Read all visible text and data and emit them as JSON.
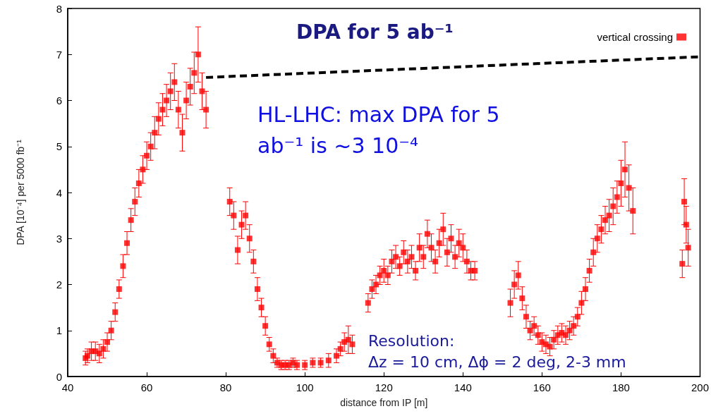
{
  "chart_data": {
    "type": "scatter",
    "title": "DPA for 5 ab⁻¹",
    "xlabel": "distance from IP [m]",
    "ylabel": "DPA [10⁻⁴] per 5000 fb⁻¹",
    "annotations": [
      "HL-LHC: max DPA for 5 ab⁻¹ is ~3 10⁻⁴",
      "Resolution:",
      "Δz = 10 cm, Δϕ = 2 deg, 2-3 mm"
    ],
    "xlim": [
      40,
      200
    ],
    "xticks": [
      40,
      60,
      80,
      100,
      120,
      140,
      160,
      180,
      200
    ],
    "ylim": [
      0,
      8
    ],
    "yticks": [
      0,
      1,
      2,
      3,
      4,
      5,
      6,
      7,
      8
    ],
    "grid": false,
    "legend": "top right",
    "marker": "square",
    "series": [
      {
        "name": "vertical crossing",
        "color": "#ff0000",
        "x": [
          44.5,
          45,
          46,
          47,
          48,
          49,
          50,
          51,
          52,
          53,
          54,
          55,
          56,
          57,
          58,
          59,
          60,
          61,
          62,
          63,
          64,
          65,
          66,
          67,
          68,
          69,
          70,
          71,
          72,
          73,
          74,
          75,
          81,
          82,
          83,
          84,
          85,
          86,
          87,
          88,
          89,
          90,
          91,
          92,
          93,
          94,
          95,
          96,
          97,
          98,
          100,
          102,
          104,
          106,
          108,
          109,
          110,
          111,
          112,
          116,
          117,
          118,
          119,
          120,
          121,
          122,
          123,
          124,
          125,
          126,
          127,
          128,
          129,
          130,
          131,
          132,
          133,
          134,
          135,
          136,
          137,
          138,
          139,
          140,
          141,
          142,
          143,
          152,
          153,
          154,
          155,
          156,
          157,
          158,
          159,
          160,
          161,
          162,
          163,
          164,
          165,
          166,
          167,
          168,
          169,
          170,
          171,
          172,
          173,
          174,
          175,
          176,
          177,
          178,
          179,
          180,
          181,
          182,
          183,
          195.5,
          196,
          196.5,
          197
        ],
        "values": [
          0.4,
          0.45,
          0.55,
          0.55,
          0.5,
          0.6,
          0.75,
          1.0,
          1.4,
          1.9,
          2.4,
          2.9,
          3.4,
          3.8,
          4.2,
          4.5,
          4.8,
          5.0,
          5.3,
          5.6,
          5.8,
          6.0,
          6.2,
          6.4,
          5.8,
          5.3,
          6.0,
          6.3,
          6.6,
          7.0,
          6.2,
          5.8,
          3.8,
          3.5,
          2.75,
          3.3,
          3.5,
          3.0,
          2.5,
          1.9,
          1.5,
          1.1,
          0.7,
          0.45,
          0.3,
          0.25,
          0.25,
          0.25,
          0.3,
          0.25,
          0.25,
          0.3,
          0.3,
          0.35,
          0.45,
          0.6,
          0.75,
          0.8,
          0.7,
          1.6,
          1.9,
          2.0,
          2.2,
          2.3,
          2.2,
          2.5,
          2.6,
          2.4,
          2.7,
          2.5,
          2.6,
          2.3,
          2.8,
          2.6,
          3.1,
          2.8,
          2.5,
          2.9,
          3.2,
          2.7,
          3.0,
          2.6,
          2.9,
          2.8,
          2.5,
          2.3,
          2.3,
          1.6,
          2.0,
          2.2,
          1.7,
          1.3,
          1.0,
          1.1,
          0.9,
          0.75,
          0.7,
          0.65,
          0.8,
          0.9,
          0.95,
          0.9,
          1.0,
          1.1,
          1.3,
          1.6,
          1.9,
          2.3,
          2.7,
          3.0,
          3.2,
          3.4,
          3.5,
          3.7,
          3.9,
          4.2,
          4.5,
          4.1,
          3.6,
          2.45,
          3.8,
          3.3,
          2.8
        ],
        "errors": [
          0.15,
          0.15,
          0.2,
          0.2,
          0.2,
          0.2,
          0.2,
          0.2,
          0.2,
          0.2,
          0.25,
          0.25,
          0.25,
          0.3,
          0.3,
          0.3,
          0.3,
          0.3,
          0.35,
          0.35,
          0.35,
          0.35,
          0.4,
          0.4,
          0.4,
          0.4,
          0.4,
          0.4,
          0.45,
          0.6,
          0.4,
          0.4,
          0.3,
          0.3,
          0.3,
          0.3,
          0.3,
          0.3,
          0.25,
          0.25,
          0.2,
          0.2,
          0.15,
          0.15,
          0.1,
          0.1,
          0.1,
          0.1,
          0.1,
          0.1,
          0.1,
          0.1,
          0.1,
          0.15,
          0.15,
          0.15,
          0.2,
          0.3,
          0.2,
          0.2,
          0.2,
          0.2,
          0.2,
          0.25,
          0.2,
          0.25,
          0.25,
          0.2,
          0.25,
          0.25,
          0.25,
          0.2,
          0.3,
          0.25,
          0.3,
          0.3,
          0.25,
          0.3,
          0.35,
          0.3,
          0.3,
          0.25,
          0.3,
          0.3,
          0.25,
          0.2,
          0.2,
          0.3,
          0.3,
          0.3,
          0.25,
          0.25,
          0.2,
          0.2,
          0.2,
          0.2,
          0.2,
          0.2,
          0.2,
          0.2,
          0.2,
          0.2,
          0.2,
          0.2,
          0.2,
          0.25,
          0.25,
          0.25,
          0.3,
          0.3,
          0.3,
          0.3,
          0.35,
          0.4,
          0.35,
          0.5,
          0.6,
          0.5,
          0.5,
          0.3,
          0.5,
          0.4,
          0.4
        ]
      },
      {
        "type": "line",
        "color": "#000000",
        "line_style": "dashed",
        "marker": "none",
        "x": [
          75,
          200
        ],
        "values": [
          6.5,
          6.95
        ]
      }
    ]
  }
}
